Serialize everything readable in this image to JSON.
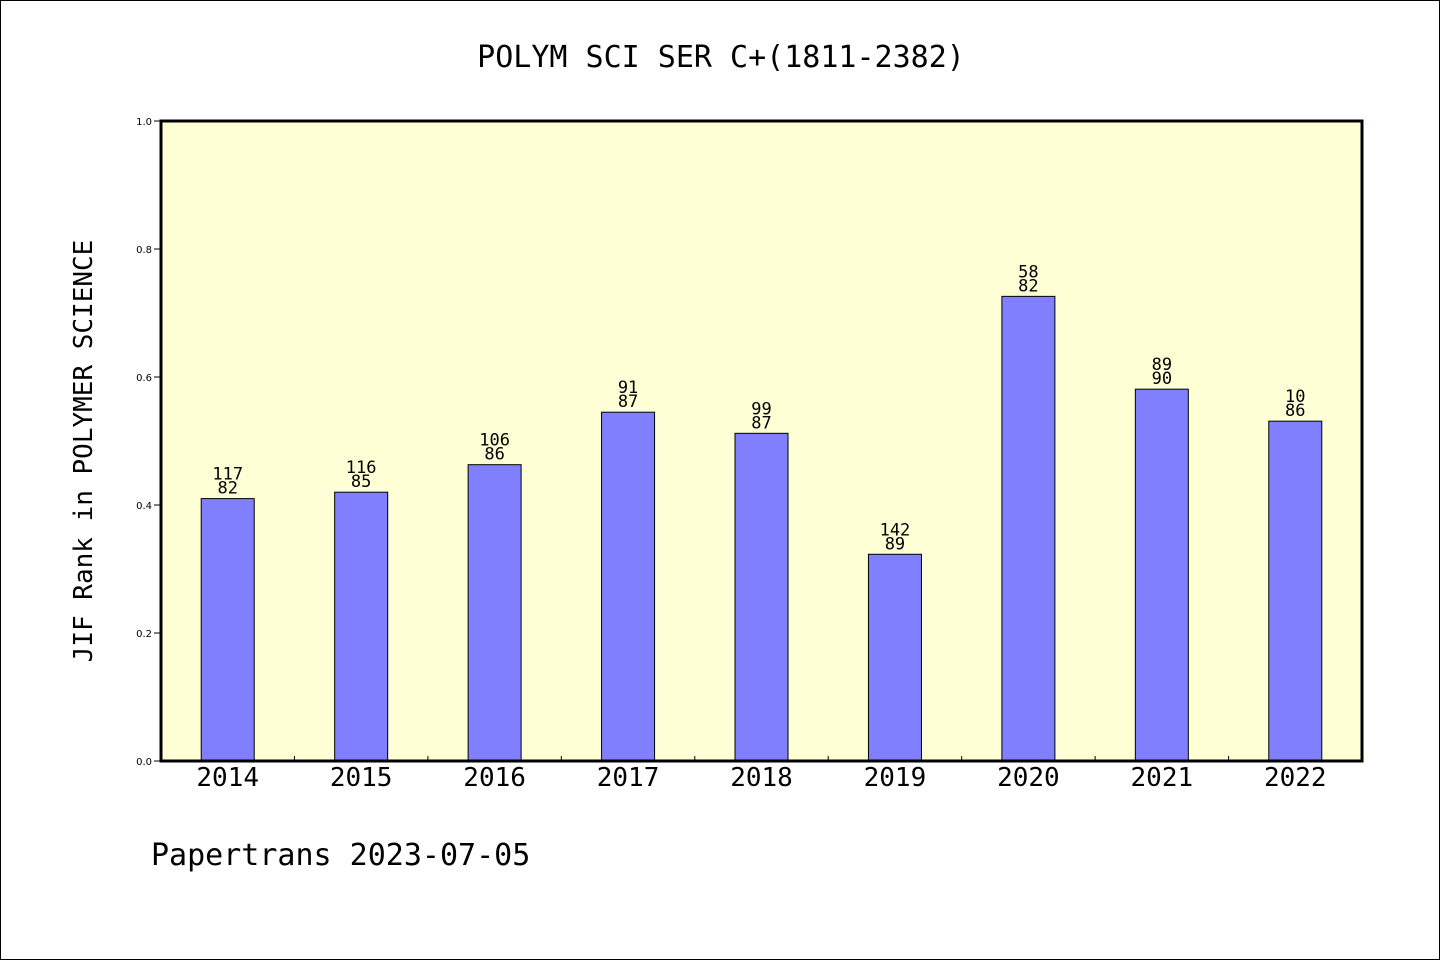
{
  "chart_data": {
    "type": "bar",
    "title": "POLYM SCI SER C+(1811-2382)",
    "ylabel": "JIF Rank in POLYMER SCIENCE",
    "xlabel": "",
    "footer": "Papertrans 2023-07-05",
    "ylim": [
      0,
      1.0
    ],
    "yticks": [
      "0.0",
      "0.2",
      "0.4",
      "0.6",
      "0.8",
      "1.0"
    ],
    "ytick_values": [
      0.0,
      0.2,
      0.4,
      0.6,
      0.8,
      1.0
    ],
    "grid": false,
    "categories": [
      "2014",
      "2015",
      "2016",
      "2017",
      "2018",
      "2019",
      "2020",
      "2021",
      "2022"
    ],
    "values": [
      0.41,
      0.42,
      0.463,
      0.545,
      0.512,
      0.323,
      0.726,
      0.581,
      0.531
    ],
    "label_top": [
      "117",
      "116",
      "106",
      "91",
      "99",
      "142",
      "58",
      "89",
      "10"
    ],
    "label_bottom": [
      "82",
      "85",
      "86",
      "87",
      "87",
      "89",
      "82",
      "90",
      "86"
    ],
    "colors": {
      "bar": "#8080ff",
      "plot_background": "#ffffd6",
      "axis": "#000000"
    }
  }
}
